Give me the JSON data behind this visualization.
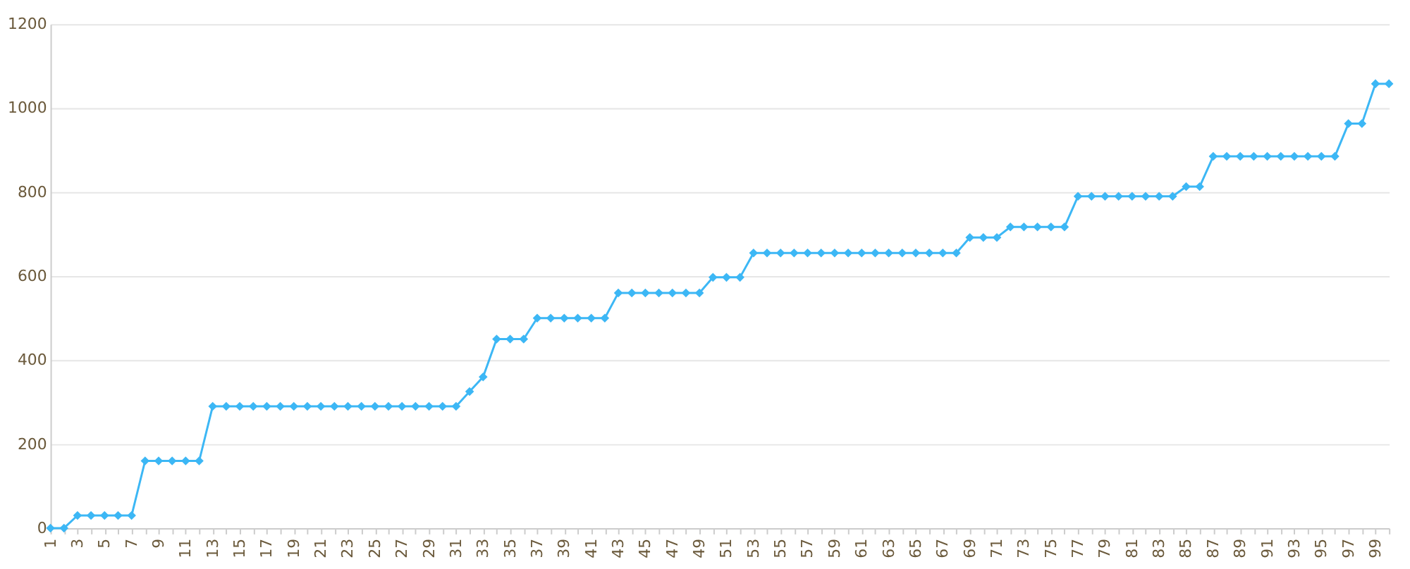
{
  "chart_data": {
    "type": "line",
    "categories": [
      "1",
      null,
      "3",
      null,
      "5",
      null,
      "7",
      null,
      "9",
      null,
      "11",
      null,
      "13",
      null,
      "15",
      null,
      "17",
      null,
      "19",
      null,
      "21",
      null,
      "23",
      null,
      "25",
      null,
      "27",
      null,
      "29",
      null,
      "31",
      null,
      "33",
      null,
      "35",
      null,
      "37",
      null,
      "39",
      null,
      "41",
      null,
      "43",
      null,
      "45",
      null,
      "47",
      null,
      "49",
      null,
      "51",
      null,
      "53",
      null,
      "55",
      null,
      "57",
      null,
      "59",
      null,
      "61",
      null,
      "63",
      null,
      "65",
      null,
      "67",
      null,
      "69",
      null,
      "71",
      null,
      "73",
      null,
      "75",
      null,
      "77",
      null,
      "79",
      null,
      "81",
      null,
      "83",
      null,
      "85",
      null,
      "87",
      null,
      "89",
      null,
      "91",
      null,
      "93",
      null,
      "95",
      null,
      "97",
      null,
      "99",
      null
    ],
    "series": [
      {
        "color": "#3cb7f5",
        "values": [
          0,
          0,
          30,
          30,
          30,
          30,
          30,
          160,
          160,
          160,
          160,
          160,
          290,
          290,
          290,
          290,
          290,
          290,
          290,
          290,
          290,
          290,
          290,
          290,
          290,
          290,
          290,
          290,
          290,
          290,
          290,
          325,
          360,
          450,
          450,
          450,
          500,
          500,
          500,
          500,
          500,
          500,
          560,
          560,
          560,
          560,
          560,
          560,
          560,
          597,
          597,
          597,
          655,
          655,
          655,
          655,
          655,
          655,
          655,
          655,
          655,
          655,
          655,
          655,
          655,
          655,
          655,
          655,
          692,
          692,
          692,
          717,
          717,
          717,
          717,
          717,
          790,
          790,
          790,
          790,
          790,
          790,
          790,
          790,
          813,
          813,
          885,
          885,
          885,
          885,
          885,
          885,
          885,
          885,
          885,
          885,
          963,
          963,
          1058,
          1058
        ]
      }
    ],
    "ylim": [
      0,
      1200
    ],
    "yticks": [
      0,
      200,
      400,
      600,
      800,
      1000,
      1200
    ],
    "grid": "y",
    "marker": "diamond",
    "line_style": "solid"
  }
}
